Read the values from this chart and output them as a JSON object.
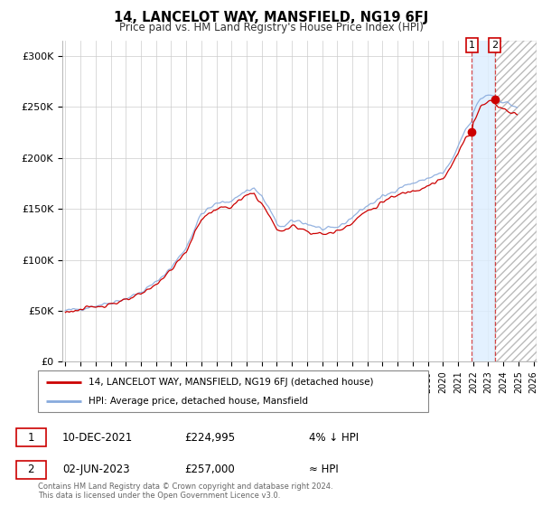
{
  "title": "14, LANCELOT WAY, MANSFIELD, NG19 6FJ",
  "subtitle": "Price paid vs. HM Land Registry's House Price Index (HPI)",
  "ylabel_ticks": [
    "£0",
    "£50K",
    "£100K",
    "£150K",
    "£200K",
    "£250K",
    "£300K"
  ],
  "ytick_values": [
    0,
    50000,
    100000,
    150000,
    200000,
    250000,
    300000
  ],
  "ylim": [
    0,
    315000
  ],
  "xlim_start": 1994.8,
  "xlim_end": 2026.2,
  "legend_line1": "14, LANCELOT WAY, MANSFIELD, NG19 6FJ (detached house)",
  "legend_line2": "HPI: Average price, detached house, Mansfield",
  "annotation1_label": "1",
  "annotation1_date": "10-DEC-2021",
  "annotation1_price": "£224,995",
  "annotation1_note": "4% ↓ HPI",
  "annotation2_label": "2",
  "annotation2_date": "02-JUN-2023",
  "annotation2_price": "£257,000",
  "annotation2_note": "≈ HPI",
  "footer": "Contains HM Land Registry data © Crown copyright and database right 2024.\nThis data is licensed under the Open Government Licence v3.0.",
  "line1_color": "#cc0000",
  "line2_color": "#88aadd",
  "point1_color": "#cc0000",
  "point2_color": "#cc0000",
  "annotation_box_color": "#cc0000",
  "shade_color": "#ddeeff",
  "hatch_color": "#cccccc",
  "point1_x": 2021.92,
  "point1_y": 224995,
  "point2_x": 2023.42,
  "point2_y": 257000
}
